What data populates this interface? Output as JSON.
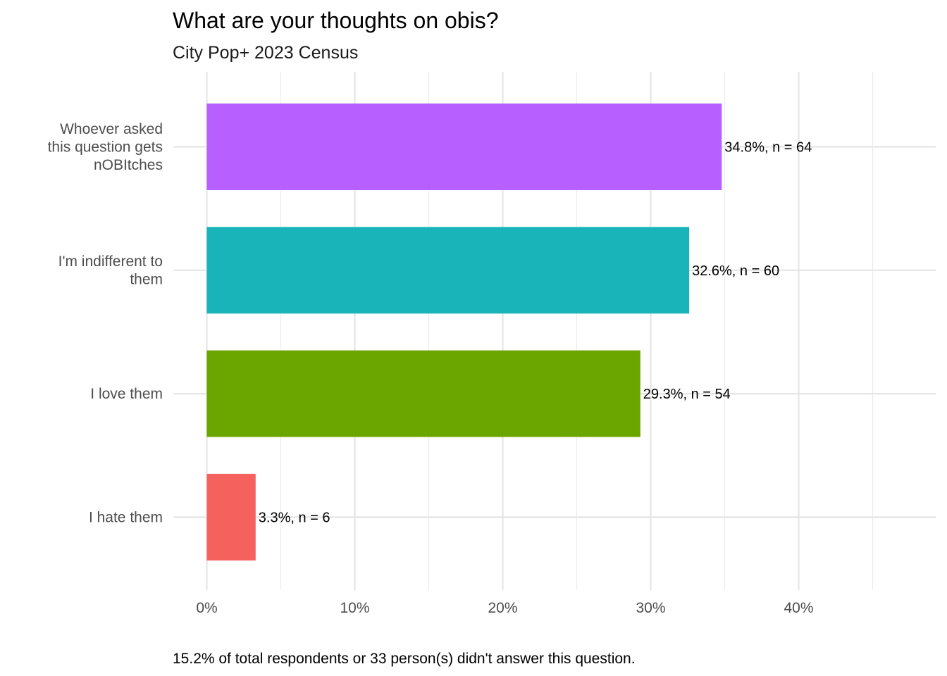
{
  "chart_data": {
    "type": "bar",
    "orientation": "horizontal",
    "title": "What are your thoughts on obis?",
    "subtitle": "City Pop+ 2023 Census",
    "caption": "15.2% of total respondents or 33 person(s) didn't answer this question.",
    "xlabel": "",
    "ylabel": "",
    "xlim": [
      0,
      49
    ],
    "grid": true,
    "legend": "none",
    "ticks": [
      {
        "value": 0,
        "label": "0%"
      },
      {
        "value": 10,
        "label": "10%"
      },
      {
        "value": 20,
        "label": "20%"
      },
      {
        "value": 30,
        "label": "30%"
      },
      {
        "value": 40,
        "label": "40%"
      }
    ],
    "minor_ticks": [
      5,
      15,
      25,
      35,
      45
    ],
    "categories": [
      {
        "lines": [
          "Whoever asked",
          "this question gets",
          "nOBItches"
        ],
        "value": 34.8,
        "n": 64,
        "label": "34.8%, n = 64",
        "color": "#B85FFF"
      },
      {
        "lines": [
          "I'm indifferent to",
          "them"
        ],
        "value": 32.6,
        "n": 60,
        "label": "32.6%, n = 60",
        "color": "#19B4B9"
      },
      {
        "lines": [
          "I love them"
        ],
        "value": 29.3,
        "n": 54,
        "label": "29.3%, n = 54",
        "color": "#6BA500"
      },
      {
        "lines": [
          "I hate them"
        ],
        "value": 3.3,
        "n": 6,
        "label": "3.3%, n = 6",
        "color": "#F5625D"
      }
    ]
  }
}
